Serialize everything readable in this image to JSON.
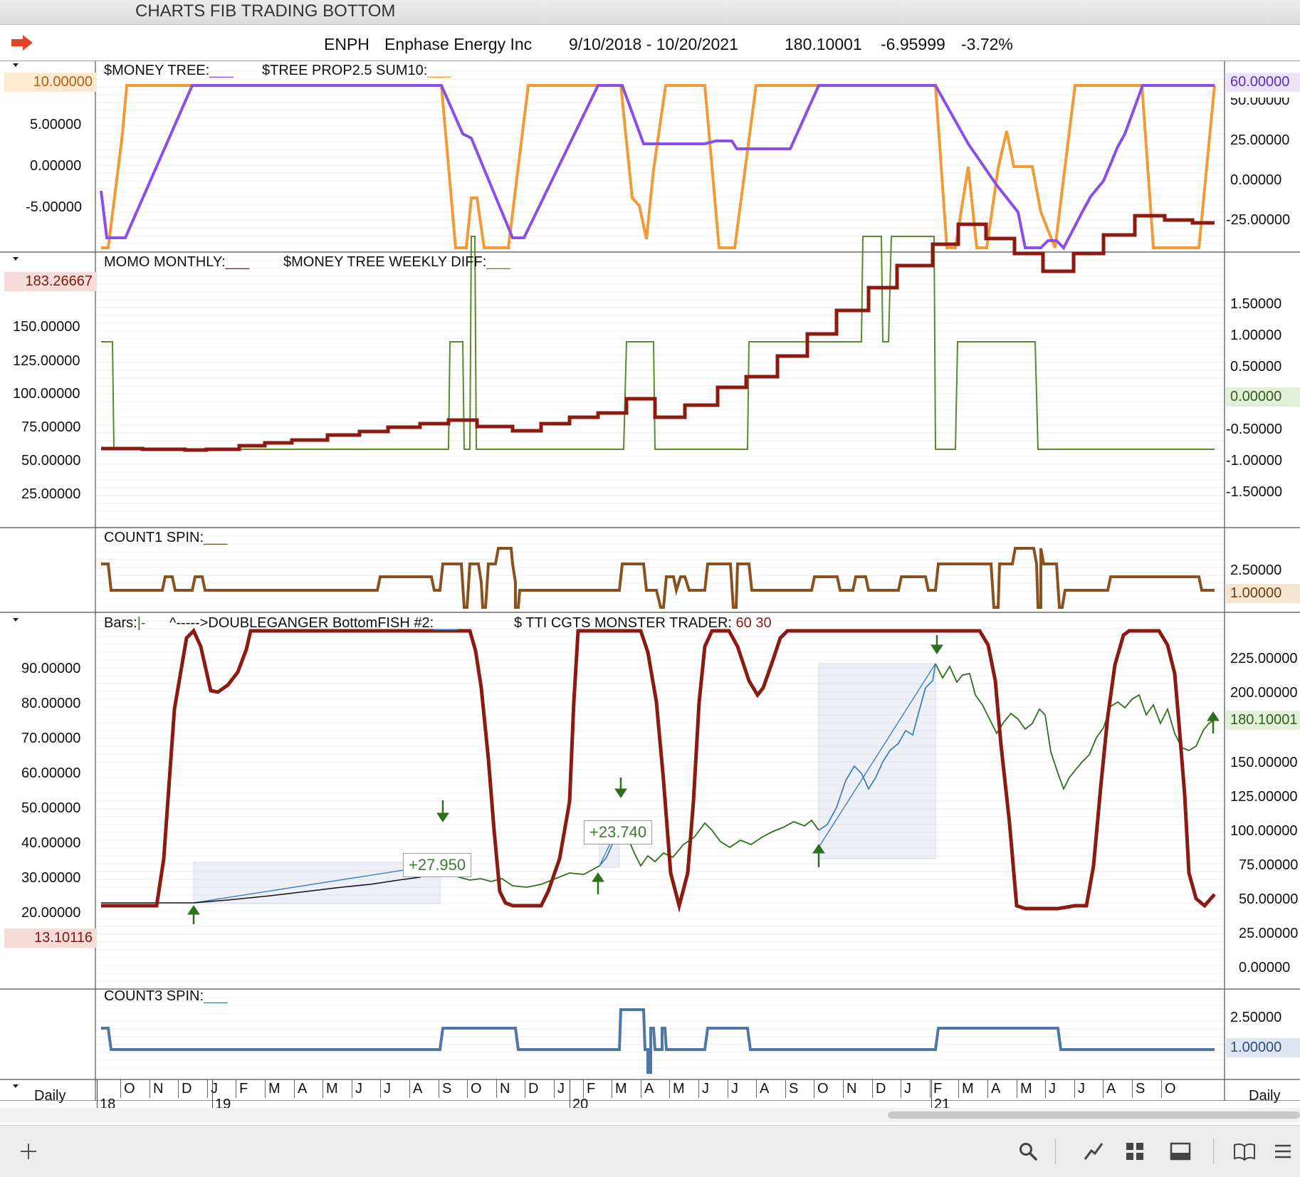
{
  "window": {
    "title": "CHARTS FIB TRADING BOTTOM"
  },
  "info": {
    "symbol": "ENPH",
    "company": "Enphase Energy Inc",
    "date_range": "9/10/2018 - 10/20/2021",
    "last": "180.10001",
    "change": "-6.95999",
    "change_pct": "-3.72%"
  },
  "panes": {
    "money_tree": {
      "title1": "$MONEY TREE:",
      "title1_line": "___",
      "title2": "$TREE PROP2.5 SUM10:",
      "title2_line": "___",
      "left_badge": "10.00000",
      "right_badge": "60.00000",
      "left_ticks": [
        "5.00000",
        "0.00000",
        "-5.00000"
      ],
      "right_ticks": [
        "50.00000",
        "25.00000",
        "0.00000",
        "-25.00000"
      ]
    },
    "momo": {
      "title1": "MOMO MONTHLY:",
      "title1_line": "___",
      "title2": "$MONEY TREE WEEKLY DIFF:",
      "title2_line": "___",
      "left_badge": "183.26667",
      "right_badge": "0.00000",
      "left_ticks": [
        "150.00000",
        "125.00000",
        "100.00000",
        "75.00000",
        "50.00000",
        "25.00000"
      ],
      "right_ticks": [
        "1.50000",
        "1.00000",
        "0.50000",
        "-0.50000",
        "-1.00000",
        "-1.50000"
      ]
    },
    "count1": {
      "title": "COUNT1 SPIN:",
      "title_line": "___",
      "right_tick": "2.50000",
      "right_badge": "1.00000"
    },
    "price": {
      "bars_label": "Bars:",
      "bars_symbol": "|-",
      "title1": "^----->DOUBLEGANGER BottomFISH  #2:",
      "title1_line": "___",
      "title2": "$ TTI CGTS MONSTER TRADER:",
      "title2_params": "60 30",
      "left_badge": "13.10116",
      "right_badge": "180.10001",
      "left_ticks": [
        "90.00000",
        "80.00000",
        "70.00000",
        "60.00000",
        "50.00000",
        "40.00000",
        "30.00000",
        "20.00000"
      ],
      "right_ticks": [
        "225.00000",
        "200.00000",
        "150.00000",
        "125.00000",
        "100.00000",
        "75.00000",
        "50.00000",
        "25.00000",
        "0.00000"
      ],
      "gain1": "+27.950",
      "gain2": "+23.740"
    },
    "count3": {
      "title": "COUNT3 SPIN:",
      "title_line": "___",
      "right_tick": "2.50000",
      "right_badge": "1.00000"
    }
  },
  "time_axis": {
    "left_label": "Daily",
    "right_label": "Daily",
    "months": [
      "O",
      "N",
      "D",
      "J",
      "F",
      "M",
      "A",
      "M",
      "J",
      "J",
      "A",
      "S",
      "O",
      "N",
      "D",
      "J",
      "F",
      "M",
      "A",
      "M",
      "J",
      "J",
      "A",
      "S",
      "O",
      "N",
      "D",
      "J",
      "F",
      "M",
      "A",
      "M",
      "J",
      "J",
      "A",
      "S",
      "O"
    ],
    "years": [
      "18",
      "19",
      "20",
      "21"
    ]
  },
  "toolbar": {
    "icons": [
      "add-icon",
      "search-icon",
      "draw-line-icon",
      "grid-layout-icon",
      "panel-layout-icon",
      "book-icon",
      "menu-icon"
    ]
  },
  "colors": {
    "orange": "#f19a38",
    "purple": "#8a4fe6",
    "maroon": "#8b1a10",
    "green_line": "#5a8a2a",
    "brown": "#8a5120",
    "steel_blue": "#4f77a3",
    "price_green": "#2f6e1c",
    "price_blue": "#3f7fbf"
  }
}
